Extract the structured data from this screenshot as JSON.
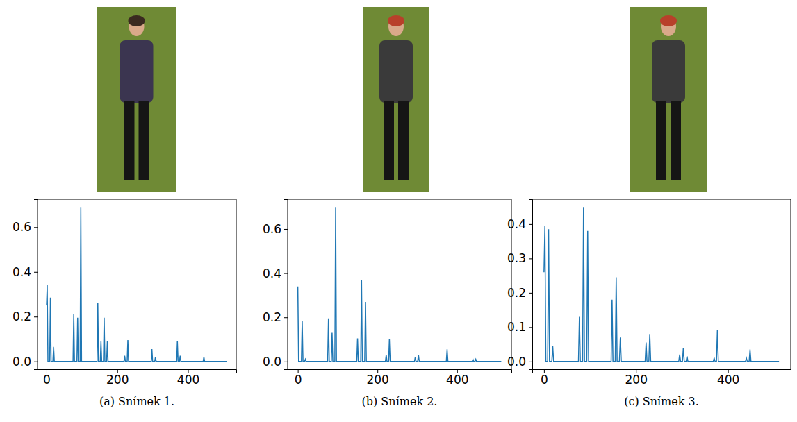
{
  "chart_data": [
    {
      "type": "line",
      "caption": "(a) Snímek 1.",
      "color": "#1f77b4",
      "x": [
        0,
        2,
        4,
        9,
        11,
        13,
        18,
        20,
        22,
        75,
        77,
        79,
        86,
        88,
        90,
        95,
        97,
        99,
        143,
        145,
        147,
        152,
        154,
        156,
        161,
        163,
        165,
        170,
        172,
        174,
        219,
        221,
        223,
        228,
        230,
        232,
        296,
        298,
        300,
        306,
        308,
        310,
        368,
        370,
        372,
        376,
        378,
        380,
        443,
        445,
        447,
        511
      ],
      "values": [
        0.25,
        0.34,
        0,
        0,
        0.285,
        0,
        0,
        0.065,
        0,
        0,
        0.21,
        0,
        0,
        0.195,
        0,
        0,
        0.69,
        0,
        0,
        0.26,
        0,
        0,
        0.09,
        0,
        0,
        0.195,
        0,
        0,
        0.09,
        0,
        0,
        0.025,
        0,
        0,
        0.095,
        0,
        0,
        0.055,
        0,
        0,
        0.02,
        0,
        0,
        0.09,
        0,
        0,
        0.025,
        0,
        0,
        0.02,
        0,
        0
      ],
      "xlim": [
        -25.5,
        536.5
      ],
      "xticks": [
        0,
        200,
        400
      ],
      "ylim": [
        -0.035,
        0.725
      ],
      "yticks": [
        {
          "value": 0,
          "label": "0.0"
        },
        0.2,
        0.4,
        0.6
      ]
    },
    {
      "type": "line",
      "caption": "(b) Snímek 2.",
      "color": "#1f77b4",
      "x": [
        0,
        2,
        9,
        11,
        13,
        17,
        19,
        21,
        75,
        77,
        79,
        84,
        86,
        88,
        93,
        95,
        97,
        148,
        150,
        152,
        158,
        160,
        162,
        168,
        170,
        172,
        220,
        222,
        224,
        228,
        230,
        232,
        293,
        295,
        297,
        301,
        303,
        305,
        373,
        375,
        377,
        438,
        440,
        442,
        445,
        447,
        449,
        511
      ],
      "values": [
        0.34,
        0,
        0,
        0.185,
        0,
        0,
        0.01,
        0,
        0,
        0.195,
        0,
        0,
        0.13,
        0,
        0,
        0.7,
        0,
        0,
        0.105,
        0,
        0,
        0.37,
        0,
        0,
        0.27,
        0,
        0,
        0.03,
        0,
        0,
        0.1,
        0,
        0,
        0.02,
        0,
        0,
        0.03,
        0,
        0,
        0.055,
        0,
        0,
        0.01,
        0,
        0,
        0.01,
        0,
        0
      ],
      "xlim": [
        -25.5,
        536.5
      ],
      "xticks": [
        0,
        200,
        400
      ],
      "ylim": [
        -0.035,
        0.735
      ],
      "yticks": [
        {
          "value": 0,
          "label": "0.0"
        },
        0.2,
        0.4,
        0.6
      ]
    },
    {
      "type": "line",
      "caption": "(c) Snímek 3.",
      "color": "#1f77b4",
      "x": [
        0,
        2,
        4,
        8,
        10,
        12,
        17,
        19,
        21,
        75,
        77,
        79,
        84,
        86,
        88,
        93,
        95,
        97,
        146,
        148,
        150,
        155,
        157,
        159,
        164,
        166,
        168,
        220,
        222,
        224,
        228,
        230,
        232,
        293,
        295,
        297,
        301,
        303,
        305,
        309,
        311,
        313,
        368,
        370,
        372,
        375,
        377,
        379,
        438,
        440,
        442,
        446,
        448,
        450,
        511
      ],
      "values": [
        0.26,
        0.395,
        0,
        0,
        0.385,
        0,
        0,
        0.045,
        0,
        0,
        0.13,
        0,
        0,
        0.45,
        0,
        0,
        0.38,
        0,
        0,
        0.18,
        0,
        0,
        0.245,
        0,
        0,
        0.07,
        0,
        0,
        0.055,
        0,
        0,
        0.08,
        0,
        0,
        0.02,
        0,
        0,
        0.04,
        0,
        0,
        0.015,
        0,
        0,
        0.01,
        0,
        0,
        0.092,
        0,
        0,
        0.01,
        0,
        0,
        0.035,
        0,
        0
      ],
      "xlim": [
        -25.5,
        536.5
      ],
      "xticks": [
        0,
        200,
        400
      ],
      "ylim": [
        -0.0225,
        0.4725
      ],
      "yticks": [
        {
          "value": 0,
          "label": "0.0"
        },
        0.1,
        0.2,
        0.3,
        0.4
      ]
    }
  ]
}
